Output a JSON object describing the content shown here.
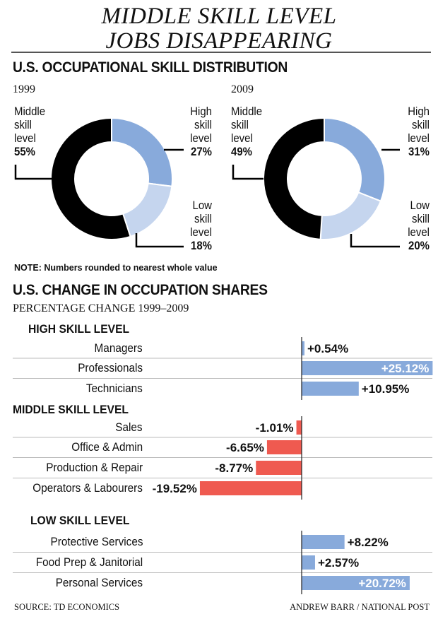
{
  "title_line1": "MIDDLE SKILL LEVEL",
  "title_line2": "JOBS DISAPPEARING",
  "chart_data": [
    {
      "type": "pie",
      "section_title": "U.S. OCCUPATIONAL SKILL DISTRIBUTION",
      "title": "1999",
      "slices": [
        {
          "label": "High skill level",
          "value": 27,
          "display": "27%",
          "color": "#88aadb"
        },
        {
          "label": "Low skill level",
          "value": 18,
          "display": "18%",
          "color": "#c5d5ee"
        },
        {
          "label": "Middle skill level",
          "value": 55,
          "display": "55%",
          "color": "#000000"
        }
      ]
    },
    {
      "type": "pie",
      "title": "2009",
      "slices": [
        {
          "label": "High skill level",
          "value": 31,
          "display": "31%",
          "color": "#88aadb"
        },
        {
          "label": "Low skill level",
          "value": 20,
          "display": "20%",
          "color": "#c5d5ee"
        },
        {
          "label": "Middle skill level",
          "value": 49,
          "display": "49%",
          "color": "#000000"
        }
      ]
    },
    {
      "type": "bar",
      "section_title": "U.S. CHANGE IN OCCUPATION SHARES",
      "subtitle": "PERCENTAGE CHANGE 1999–2009",
      "orientation": "horizontal",
      "positive_color": "#88aadb",
      "negative_color": "#ef5a50",
      "groups": [
        {
          "name": "HIGH SKILL LEVEL",
          "items": [
            {
              "label": "Managers",
              "value": 0.54,
              "display": "+0.54%"
            },
            {
              "label": "Professionals",
              "value": 25.12,
              "display": "+25.12%"
            },
            {
              "label": "Technicians",
              "value": 10.95,
              "display": "+10.95%"
            }
          ]
        },
        {
          "name": "MIDDLE SKILL LEVEL",
          "items": [
            {
              "label": "Sales",
              "value": -1.01,
              "display": "-1.01%"
            },
            {
              "label": "Office & Admin",
              "value": -6.65,
              "display": "-6.65%"
            },
            {
              "label": "Production & Repair",
              "value": -8.77,
              "display": "-8.77%"
            },
            {
              "label": "Operators & Labourers",
              "value": -19.52,
              "display": "-19.52%"
            }
          ]
        },
        {
          "name": "LOW SKILL LEVEL",
          "items": [
            {
              "label": "Protective Services",
              "value": 8.22,
              "display": "+8.22%"
            },
            {
              "label": "Food Prep & Janitorial",
              "value": 2.57,
              "display": "+2.57%"
            },
            {
              "label": "Personal Services",
              "value": 20.72,
              "display": "+20.72%"
            }
          ]
        }
      ]
    }
  ],
  "donut_labels": {
    "middle": [
      "Middle",
      "skill",
      "level"
    ],
    "high": [
      "High",
      "skill",
      "level"
    ],
    "low": [
      "Low",
      "skill",
      "level"
    ]
  },
  "note_bold": "NOTE:",
  "note_text": " Numbers rounded to nearest whole value",
  "source": "SOURCE: TD ECONOMICS",
  "credit": "ANDREW BARR / NATIONAL POST"
}
